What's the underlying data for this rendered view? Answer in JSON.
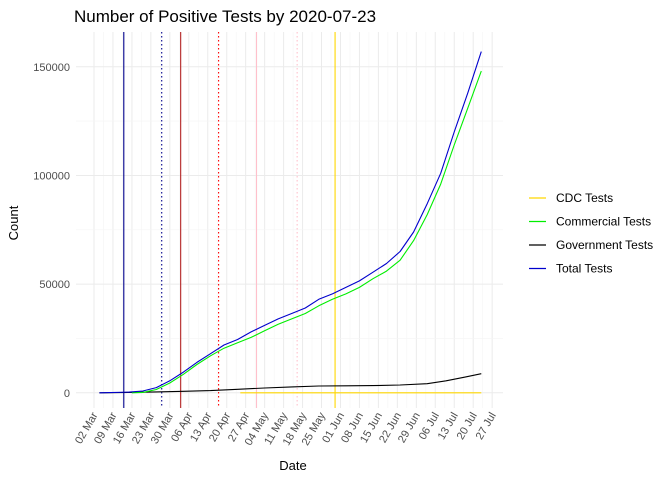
{
  "chart_data": {
    "type": "line",
    "title": "Number of Positive Tests by  2020-07-23",
    "xlabel": "Date",
    "ylabel": "Count",
    "x_start": "2020-03-02",
    "x_ticks": [
      "02 Mar",
      "09 Mar",
      "16 Mar",
      "23 Mar",
      "30 Mar",
      "06 Apr",
      "13 Apr",
      "20 Apr",
      "27 Apr",
      "04 May",
      "11 May",
      "18 May",
      "25 May",
      "01 Jun",
      "08 Jun",
      "15 Jun",
      "22 Jun",
      "29 Jun",
      "06 Jul",
      "13 Jul",
      "20 Jul",
      "27 Jul"
    ],
    "y_ticks": [
      0,
      50000,
      100000,
      150000
    ],
    "y_tick_labels": [
      "0",
      "50000",
      "100000",
      "150000"
    ],
    "ylim": [
      -7000,
      166000
    ],
    "grid": true,
    "legend_position": "right",
    "series": [
      {
        "name": "CDC Tests",
        "color": "#FFD700",
        "points": [
          [
            "2020-04-25",
            0
          ],
          [
            "2020-07-23",
            0
          ]
        ]
      },
      {
        "name": "Commercial Tests",
        "color": "#00EE00",
        "points": [
          [
            "2020-03-16",
            0
          ],
          [
            "2020-03-20",
            200
          ],
          [
            "2020-03-25",
            1500
          ],
          [
            "2020-03-30",
            4500
          ],
          [
            "2020-04-04",
            8500
          ],
          [
            "2020-04-09",
            13000
          ],
          [
            "2020-04-14",
            17000
          ],
          [
            "2020-04-19",
            20500
          ],
          [
            "2020-04-24",
            23000
          ],
          [
            "2020-04-29",
            25500
          ],
          [
            "2020-05-04",
            28500
          ],
          [
            "2020-05-09",
            31500
          ],
          [
            "2020-05-14",
            34000
          ],
          [
            "2020-05-19",
            36500
          ],
          [
            "2020-05-24",
            40000
          ],
          [
            "2020-05-29",
            43000
          ],
          [
            "2020-06-03",
            45500
          ],
          [
            "2020-06-08",
            48500
          ],
          [
            "2020-06-13",
            52500
          ],
          [
            "2020-06-18",
            56000
          ],
          [
            "2020-06-23",
            61000
          ],
          [
            "2020-06-28",
            70000
          ],
          [
            "2020-07-03",
            82000
          ],
          [
            "2020-07-08",
            96000
          ],
          [
            "2020-07-13",
            114000
          ],
          [
            "2020-07-18",
            131000
          ],
          [
            "2020-07-23",
            148000
          ]
        ]
      },
      {
        "name": "Government Tests",
        "color": "#000000",
        "points": [
          [
            "2020-03-04",
            0
          ],
          [
            "2020-03-15",
            200
          ],
          [
            "2020-03-25",
            400
          ],
          [
            "2020-04-04",
            700
          ],
          [
            "2020-04-14",
            1000
          ],
          [
            "2020-04-24",
            1600
          ],
          [
            "2020-05-04",
            2200
          ],
          [
            "2020-05-14",
            2700
          ],
          [
            "2020-05-24",
            3100
          ],
          [
            "2020-06-03",
            3200
          ],
          [
            "2020-06-13",
            3300
          ],
          [
            "2020-06-23",
            3600
          ],
          [
            "2020-07-03",
            4200
          ],
          [
            "2020-07-10",
            5500
          ],
          [
            "2020-07-17",
            7200
          ],
          [
            "2020-07-23",
            8800
          ]
        ]
      },
      {
        "name": "Total Tests",
        "color": "#0000CD",
        "points": [
          [
            "2020-03-04",
            0
          ],
          [
            "2020-03-15",
            300
          ],
          [
            "2020-03-20",
            800
          ],
          [
            "2020-03-25",
            2400
          ],
          [
            "2020-03-30",
            5500
          ],
          [
            "2020-04-04",
            9500
          ],
          [
            "2020-04-09",
            14000
          ],
          [
            "2020-04-14",
            18000
          ],
          [
            "2020-04-19",
            22000
          ],
          [
            "2020-04-24",
            24500
          ],
          [
            "2020-04-29",
            28000
          ],
          [
            "2020-05-04",
            31000
          ],
          [
            "2020-05-09",
            34000
          ],
          [
            "2020-05-14",
            36500
          ],
          [
            "2020-05-19",
            39000
          ],
          [
            "2020-05-24",
            43000
          ],
          [
            "2020-05-29",
            45500
          ],
          [
            "2020-06-03",
            48500
          ],
          [
            "2020-06-08",
            51500
          ],
          [
            "2020-06-13",
            55500
          ],
          [
            "2020-06-18",
            59500
          ],
          [
            "2020-06-23",
            65000
          ],
          [
            "2020-06-28",
            74000
          ],
          [
            "2020-07-03",
            87000
          ],
          [
            "2020-07-08",
            101000
          ],
          [
            "2020-07-13",
            120000
          ],
          [
            "2020-07-18",
            138000
          ],
          [
            "2020-07-23",
            157000
          ]
        ]
      }
    ],
    "reference_lines": [
      {
        "date": "2020-03-13",
        "color": "#00008B",
        "style": "solid"
      },
      {
        "date": "2020-03-27",
        "color": "#00008B",
        "style": "dotted"
      },
      {
        "date": "2020-04-03",
        "color": "#B22222",
        "style": "solid"
      },
      {
        "date": "2020-04-17",
        "color": "#FF0000",
        "style": "dotted"
      },
      {
        "date": "2020-05-01",
        "color": "#FFC0CB",
        "style": "solid"
      },
      {
        "date": "2020-05-16",
        "color": "#FFC0CB",
        "style": "dotted"
      },
      {
        "date": "2020-05-30",
        "color": "#FFD700",
        "style": "solid"
      }
    ]
  }
}
